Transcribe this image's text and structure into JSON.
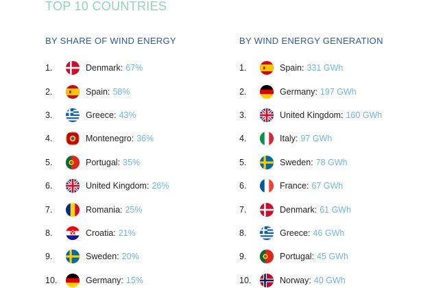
{
  "title": "TOP 10 COUNTRIES",
  "left": {
    "heading": "BY SHARE OF WIND ENERGY",
    "items": [
      {
        "rank": "1.",
        "country": "Denmark",
        "value": "67%",
        "flag": "denmark-flag-icon"
      },
      {
        "rank": "2.",
        "country": "Spain",
        "value": "58%",
        "flag": "spain-flag-icon"
      },
      {
        "rank": "3.",
        "country": "Greece",
        "value": "43%",
        "flag": "greece-flag-icon"
      },
      {
        "rank": "4.",
        "country": "Montenegro",
        "value": "36%",
        "flag": "montenegro-flag-icon"
      },
      {
        "rank": "5.",
        "country": "Portugal",
        "value": "35%",
        "flag": "portugal-flag-icon"
      },
      {
        "rank": "6.",
        "country": "United Kingdom",
        "value": "26%",
        "flag": "uk-flag-icon"
      },
      {
        "rank": "7.",
        "country": "Romania",
        "value": "25%",
        "flag": "romania-flag-icon"
      },
      {
        "rank": "8.",
        "country": "Croatia",
        "value": "21%",
        "flag": "croatia-flag-icon"
      },
      {
        "rank": "9.",
        "country": "Sweden",
        "value": "20%",
        "flag": "sweden-flag-icon"
      },
      {
        "rank": "10.",
        "country": "Germany",
        "value": "15%",
        "flag": "germany-flag-icon"
      }
    ]
  },
  "right": {
    "heading": "BY WIND ENERGY GENERATION",
    "items": [
      {
        "rank": "1.",
        "country": "Spain",
        "value": "331 GWh",
        "flag": "spain-flag-icon"
      },
      {
        "rank": "2.",
        "country": "Germany",
        "value": "197 GWh",
        "flag": "germany-flag-icon"
      },
      {
        "rank": "3.",
        "country": "United Kingdom",
        "value": "160 GWh",
        "flag": "uk-flag-icon"
      },
      {
        "rank": "4.",
        "country": "Italy",
        "value": "97 GWh",
        "flag": "italy-flag-icon"
      },
      {
        "rank": "5.",
        "country": "Sweden",
        "value": "78 GWh",
        "flag": "sweden-flag-icon"
      },
      {
        "rank": "6.",
        "country": "France",
        "value": "67 GWh",
        "flag": "france-flag-icon"
      },
      {
        "rank": "7.",
        "country": "Denmark",
        "value": "61 GWh",
        "flag": "denmark-flag-icon"
      },
      {
        "rank": "8.",
        "country": "Greece",
        "value": "46 GWh",
        "flag": "greece-flag-icon"
      },
      {
        "rank": "9.",
        "country": "Portugal",
        "value": "45 GWh",
        "flag": "portugal-flag-icon"
      },
      {
        "rank": "10.",
        "country": "Norway",
        "value": "40 GWh",
        "flag": "norway-flag-icon"
      }
    ]
  },
  "colors": {
    "title": "#8fd6b6",
    "heading": "#2b5aa0",
    "value": "#6fb7e0",
    "text": "#222222"
  }
}
